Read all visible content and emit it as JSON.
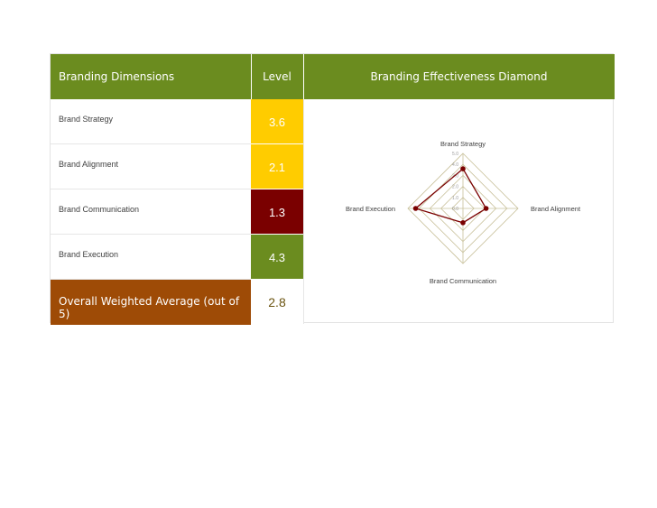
{
  "table": {
    "headers": {
      "dimensions": "Branding Dimensions",
      "level": "Level",
      "diamond": "Branding Effectiveness Diamond"
    },
    "rows": [
      {
        "label": "Brand Strategy",
        "level": "3.6",
        "color": "#ffcc00",
        "text_color": "#ffffff"
      },
      {
        "label": "Brand Alignment",
        "level": "2.1",
        "color": "#ffcc00",
        "text_color": "#ffffff"
      },
      {
        "label": "Brand Communication",
        "level": "1.3",
        "color": "#7a0000",
        "text_color": "#ffffff"
      },
      {
        "label": "Brand Execution",
        "level": "4.3",
        "color": "#6b8c1f",
        "text_color": "#ffffff"
      }
    ],
    "overall": {
      "label": "Overall Weighted Average (out of 5)",
      "level": "2.8"
    }
  },
  "colors": {
    "header_bg": "#6b8c1f",
    "overall_bg": "#9e4b06",
    "grid": "#c8c09a",
    "series": "#7a0000"
  },
  "chart_data": {
    "type": "radar",
    "title": "",
    "axes": [
      "Brand Strategy",
      "Brand Alignment",
      "Brand Communication",
      "Brand Execution"
    ],
    "values": [
      3.6,
      2.1,
      1.3,
      4.3
    ],
    "rlim": [
      0,
      5
    ],
    "ticks": [
      "0.0",
      "1.0",
      "2.0",
      "3.0",
      "4.0",
      "5.0"
    ],
    "grid": true
  }
}
